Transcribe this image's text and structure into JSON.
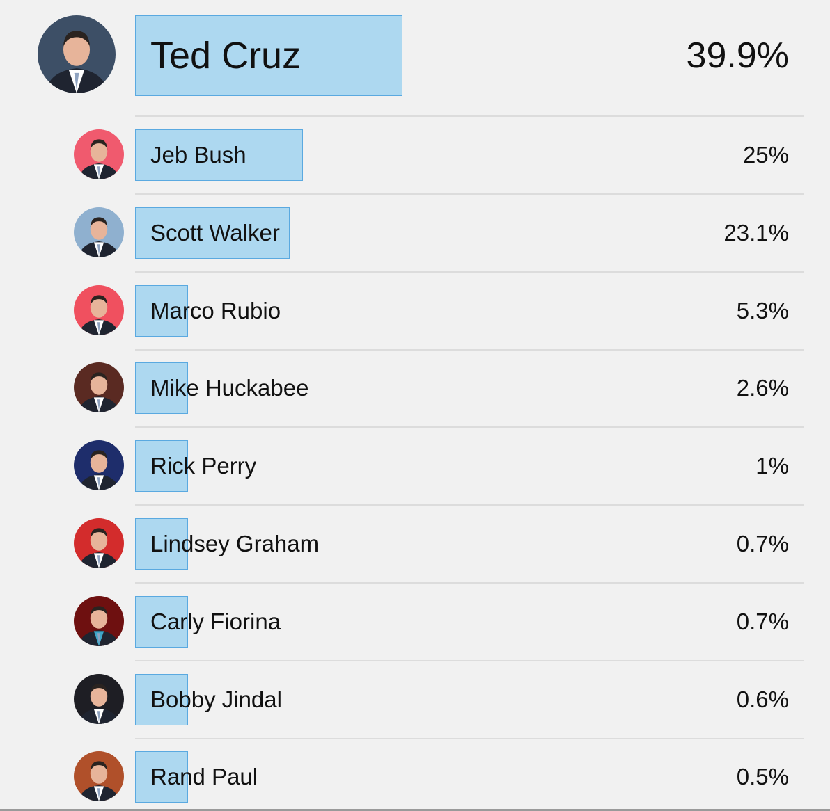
{
  "poll": {
    "bar_scale_max_percent": 39.9,
    "colors": {
      "background": "#f1f1f1",
      "bar_fill": "#add8f0",
      "bar_border": "#5aa9e0",
      "divider": "#dcdcdc"
    },
    "candidates": [
      {
        "name": "Ted Cruz",
        "percent_label": "39.9%",
        "percent": 39.9,
        "avatar_bg": "#3d4f66",
        "avatar_accent": "#ffffff"
      },
      {
        "name": "Jeb Bush",
        "percent_label": "25%",
        "percent": 25,
        "avatar_bg": "#f05a6e",
        "avatar_accent": "#ffffff"
      },
      {
        "name": "Scott Walker",
        "percent_label": "23.1%",
        "percent": 23.1,
        "avatar_bg": "#8fb0cf",
        "avatar_accent": "#ffffff"
      },
      {
        "name": "Marco Rubio",
        "percent_label": "5.3%",
        "percent": 5.3,
        "avatar_bg": "#f0505f",
        "avatar_accent": "#ffffff"
      },
      {
        "name": "Mike Huckabee",
        "percent_label": "2.6%",
        "percent": 2.6,
        "avatar_bg": "#5a2a22",
        "avatar_accent": "#ffffff"
      },
      {
        "name": "Rick Perry",
        "percent_label": "1%",
        "percent": 1,
        "avatar_bg": "#1e2d6b",
        "avatar_accent": "#ffffff"
      },
      {
        "name": "Lindsey Graham",
        "percent_label": "0.7%",
        "percent": 0.7,
        "avatar_bg": "#d32c2c",
        "avatar_accent": "#ffffff"
      },
      {
        "name": "Carly Fiorina",
        "percent_label": "0.7%",
        "percent": 0.7,
        "avatar_bg": "#6e1010",
        "avatar_accent": "#3fa6c8"
      },
      {
        "name": "Bobby Jindal",
        "percent_label": "0.6%",
        "percent": 0.6,
        "avatar_bg": "#1e1e24",
        "avatar_accent": "#ffffff"
      },
      {
        "name": "Rand Paul",
        "percent_label": "0.5%",
        "percent": 0.5,
        "avatar_bg": "#b0502a",
        "avatar_accent": "#ffffff"
      }
    ]
  }
}
